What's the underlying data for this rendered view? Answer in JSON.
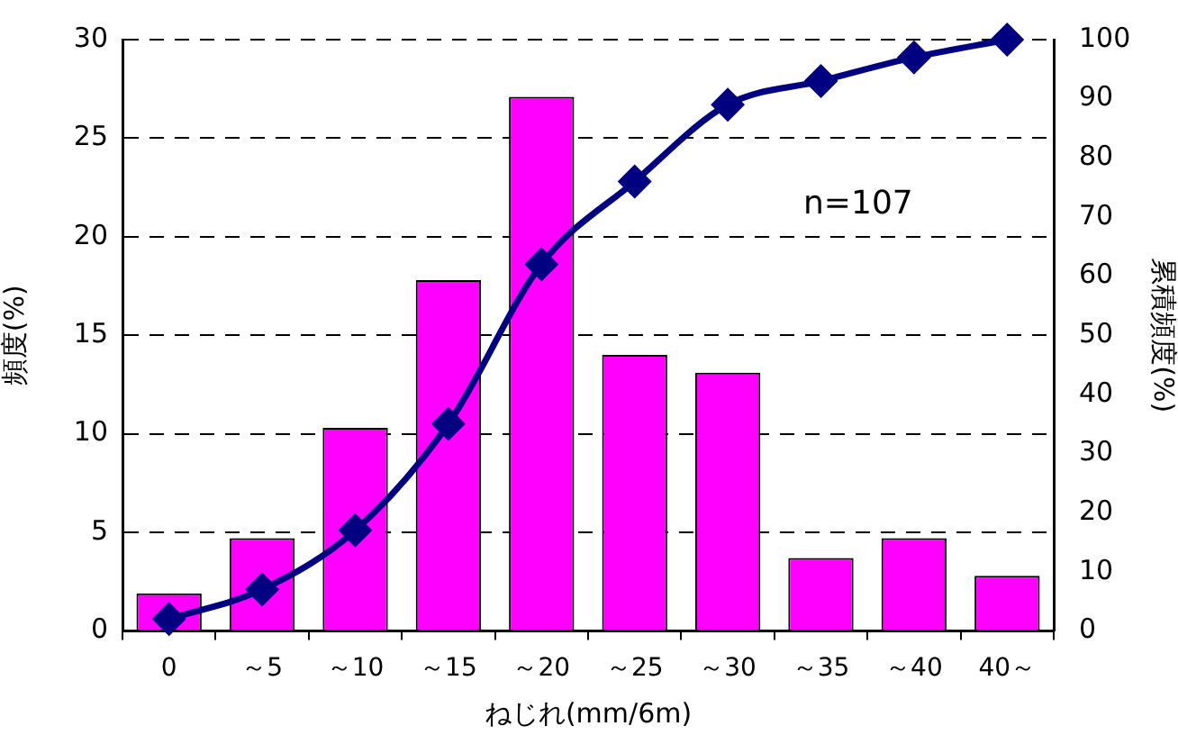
{
  "chart_data": {
    "type": "bar",
    "xlabel": "ねじれ(mm/6m)",
    "ylabel": "頻度(%)",
    "y2label": "累積頻度(%)",
    "categories": [
      "0",
      "～5",
      "～10",
      "～15",
      "～20",
      "～25",
      "～30",
      "～35",
      "～40",
      "40～"
    ],
    "series": [
      {
        "color": "#ff00ff",
        "values": [
          1.9,
          4.7,
          10.3,
          17.8,
          27.1,
          14.0,
          13.1,
          3.7,
          4.7,
          2.8
        ]
      },
      {
        "type": "line",
        "axis": "y2",
        "color": "#000080",
        "marker": "diamond",
        "values": [
          2,
          7,
          17,
          35,
          62,
          76,
          89,
          93,
          97,
          100
        ]
      }
    ],
    "ylim": [
      0,
      30
    ],
    "yticks": [
      0,
      5,
      10,
      15,
      20,
      25,
      30
    ],
    "y2lim": [
      0,
      100
    ],
    "y2ticks": [
      0,
      10,
      20,
      30,
      40,
      50,
      60,
      70,
      80,
      90,
      100
    ],
    "grid": "y",
    "legend": false,
    "annotations": [
      "n=107"
    ]
  }
}
